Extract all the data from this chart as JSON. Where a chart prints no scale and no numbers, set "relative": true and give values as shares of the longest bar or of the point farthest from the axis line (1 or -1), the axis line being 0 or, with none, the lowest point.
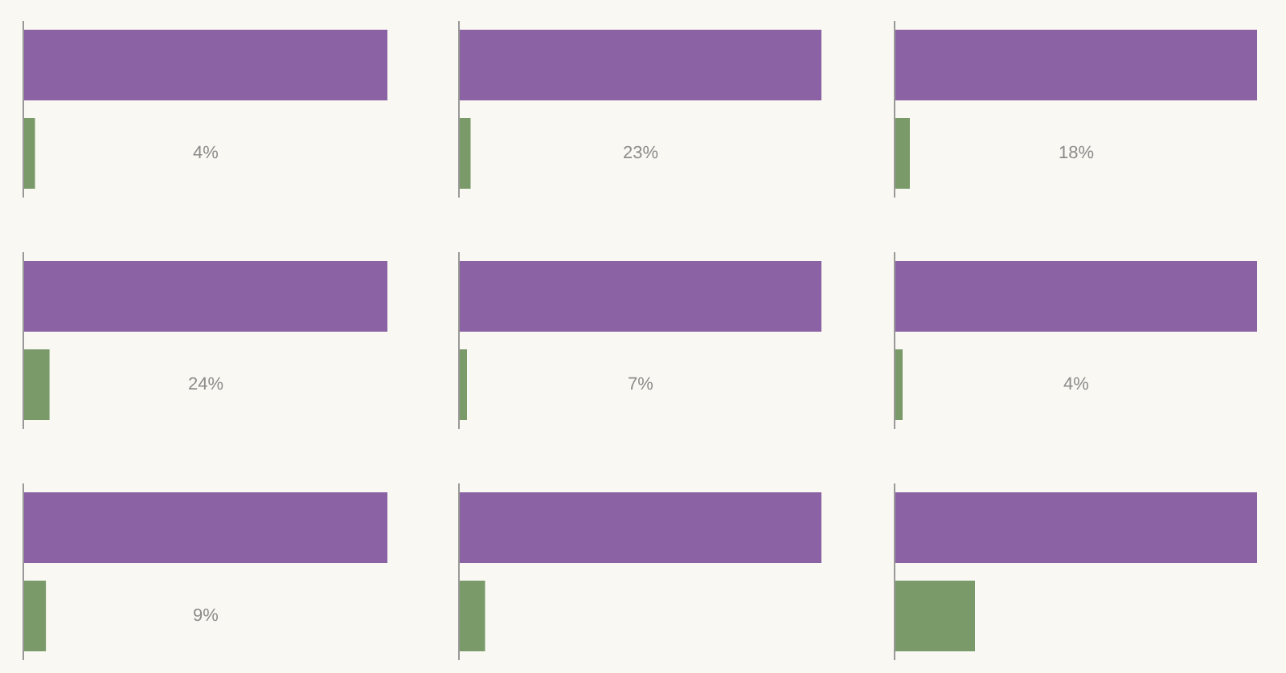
{
  "chart_data": [
    {
      "type": "bar",
      "orientation": "horizontal",
      "relative": true,
      "categories": [
        null,
        null
      ],
      "values": [
        1,
        0.03
      ],
      "colors": [
        "#8b63a5",
        "#7a9a6a"
      ],
      "annotations": [
        "4%"
      ]
    },
    {
      "type": "bar",
      "orientation": "horizontal",
      "relative": true,
      "categories": [
        null,
        null
      ],
      "values": [
        1,
        0.03
      ],
      "colors": [
        "#8b63a5",
        "#7a9a6a"
      ],
      "annotations": [
        "23%"
      ]
    },
    {
      "type": "bar",
      "orientation": "horizontal",
      "relative": true,
      "categories": [
        null,
        null
      ],
      "values": [
        1,
        0.04
      ],
      "colors": [
        "#8b63a5",
        "#7a9a6a"
      ],
      "annotations": [
        "18%"
      ]
    },
    {
      "type": "bar",
      "orientation": "horizontal",
      "relative": true,
      "categories": [
        null,
        null
      ],
      "values": [
        1,
        0.07
      ],
      "colors": [
        "#8b63a5",
        "#7a9a6a"
      ],
      "annotations": [
        "24%"
      ]
    },
    {
      "type": "bar",
      "orientation": "horizontal",
      "relative": true,
      "categories": [
        null,
        null
      ],
      "values": [
        1,
        0.02
      ],
      "colors": [
        "#8b63a5",
        "#7a9a6a"
      ],
      "annotations": [
        "7%"
      ]
    },
    {
      "type": "bar",
      "orientation": "horizontal",
      "relative": true,
      "categories": [
        null,
        null
      ],
      "values": [
        1,
        0.02
      ],
      "colors": [
        "#8b63a5",
        "#7a9a6a"
      ],
      "annotations": [
        "4%"
      ]
    },
    {
      "type": "bar",
      "orientation": "horizontal",
      "relative": true,
      "categories": [
        null,
        null
      ],
      "values": [
        1,
        0.06
      ],
      "colors": [
        "#8b63a5",
        "#7a9a6a"
      ],
      "annotations": [
        "9%"
      ]
    },
    {
      "type": "bar",
      "orientation": "horizontal",
      "relative": true,
      "categories": [
        null,
        null
      ],
      "values": [
        1,
        0.07
      ],
      "colors": [
        "#8b63a5",
        "#7a9a6a"
      ]
    },
    {
      "type": "bar",
      "orientation": "horizontal",
      "relative": true,
      "categories": [
        null,
        null
      ],
      "values": [
        1,
        0.22
      ],
      "colors": [
        "#8b63a5",
        "#7a9a6a"
      ]
    }
  ]
}
